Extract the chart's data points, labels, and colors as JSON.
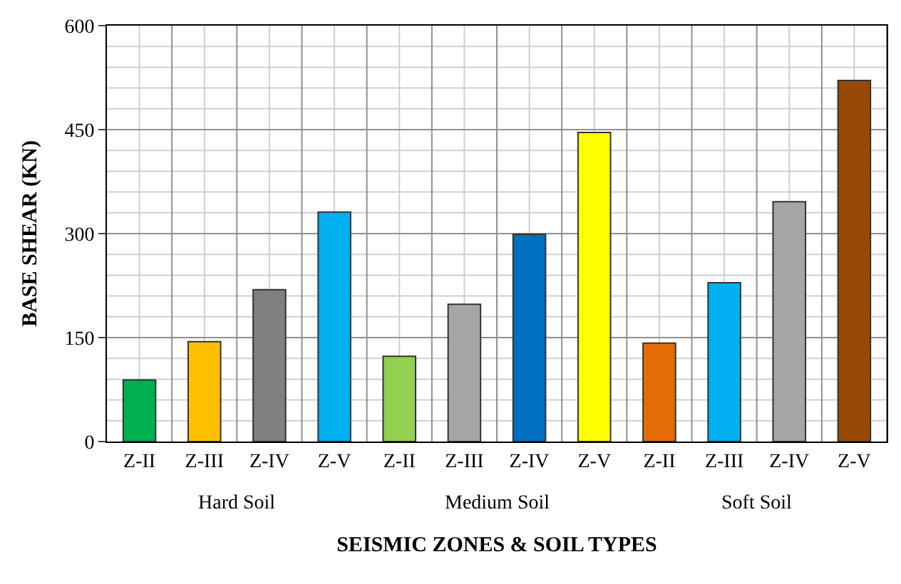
{
  "chart_data": {
    "type": "bar",
    "xlabel": "SEISMIC ZONES & SOIL TYPES",
    "ylabel": "BASE SHEAR (KN)",
    "categories": [
      "Z-II",
      "Z-III",
      "Z-IV",
      "Z-V",
      "Z-II",
      "Z-III",
      "Z-IV",
      "Z-V",
      "Z-II",
      "Z-III",
      "Z-IV",
      "Z-V"
    ],
    "values": [
      89,
      144,
      219,
      331,
      123,
      198,
      299,
      446,
      142,
      229,
      346,
      521
    ],
    "colors": [
      "#00b050",
      "#ffc000",
      "#808080",
      "#00b0f0",
      "#92d050",
      "#a6a6a6",
      "#0070c0",
      "#ffff00",
      "#e36c09",
      "#00b0f0",
      "#a6a6a6",
      "#984807"
    ],
    "annotations": [
      "Hard Soil",
      "Medium Soil",
      "Soft Soil"
    ],
    "ylim": [
      0,
      600
    ],
    "yticks": [
      0,
      150,
      300,
      450,
      600
    ],
    "grid": true
  }
}
